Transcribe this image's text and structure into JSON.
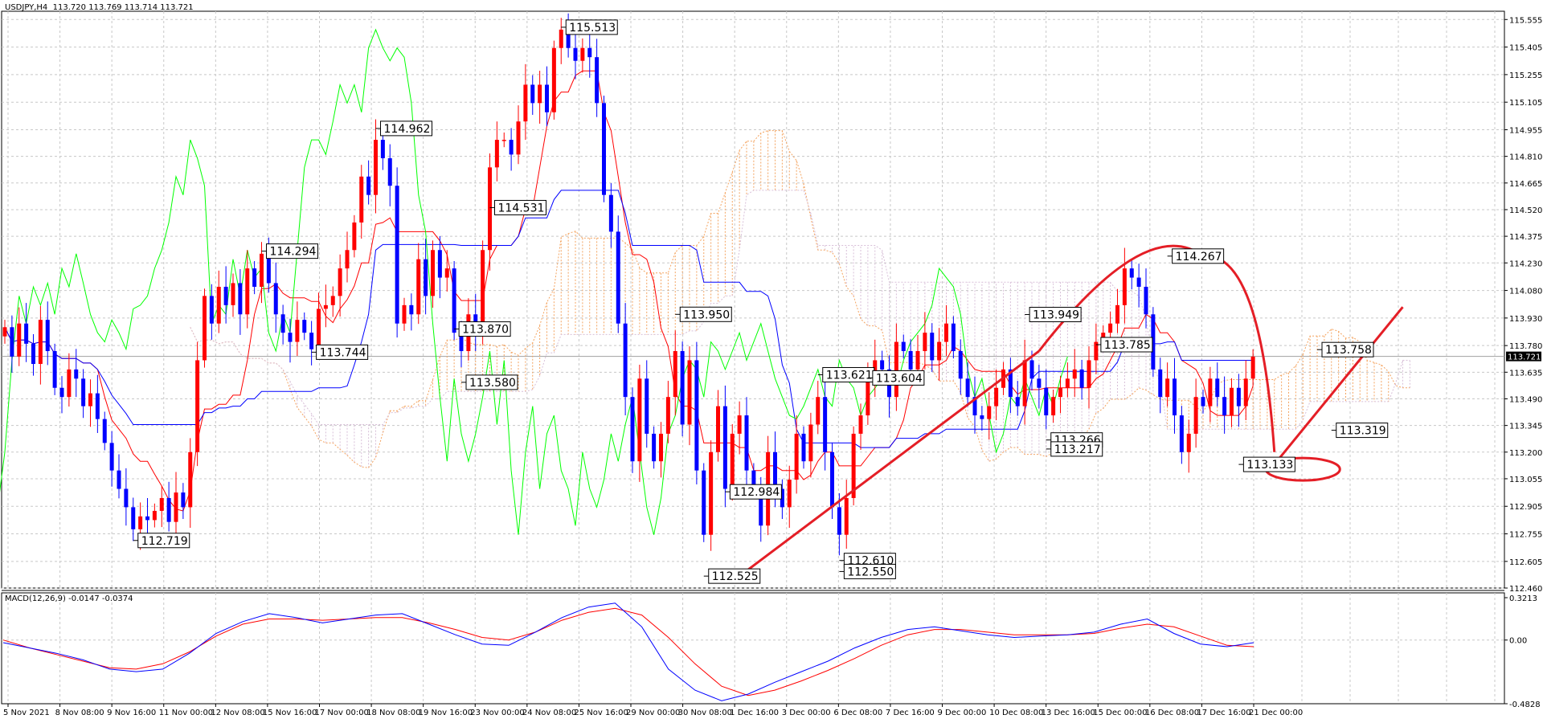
{
  "header": {
    "symbol": "USDJPY,H4",
    "ohlc": "113.720 113.769 113.714 113.721"
  },
  "macd_header": {
    "label": "MACD(12,26,9)",
    "values": "-0.0147 -0.0374"
  },
  "colors": {
    "bull": "#ff0000",
    "bear": "#0000ff",
    "tenkan": "#ff0000",
    "kijun": "#0000ff",
    "chikou": "#00ff00",
    "cloud_up": "#f4a460",
    "cloud_down": "#d8bfd8",
    "macd": "#0000ff",
    "signal": "#ff0000",
    "annotation": "#e41e26",
    "grid": "#c8c8c8"
  },
  "chart_data": [
    {
      "type": "candlestick",
      "symbol": "USDJPY",
      "timeframe": "H4",
      "ylim": [
        112.46,
        115.6
      ],
      "y_ticks": [
        "115.555",
        "115.405",
        "115.255",
        "115.105",
        "114.955",
        "114.810",
        "114.665",
        "114.520",
        "114.375",
        "114.230",
        "114.080",
        "113.930",
        "113.780",
        "113.635",
        "113.490",
        "113.345",
        "113.200",
        "113.055",
        "112.905",
        "112.755",
        "112.605",
        "112.460"
      ],
      "current_price": "113.721",
      "x_tick_labels": [
        "5 Nov 2021",
        "8 Nov 08:00",
        "9 Nov 16:00",
        "11 Nov 00:00",
        "12 Nov 08:00",
        "15 Nov 16:00",
        "17 Nov 00:00",
        "18 Nov 08:00",
        "19 Nov 16:00",
        "23 Nov 00:00",
        "24 Nov 08:00",
        "25 Nov 16:00",
        "29 Nov 00:00",
        "30 Nov 08:00",
        "1 Dec 16:00",
        "3 Dec 00:00",
        "6 Dec 08:00",
        "7 Dec 16:00",
        "9 Dec 00:00",
        "10 Dec 08:00",
        "13 Dec 16:00",
        "15 Dec 00:00",
        "16 Dec 08:00",
        "17 Dec 16:00",
        "21 Dec 00:00"
      ],
      "closes": [
        113.88,
        113.72,
        113.9,
        113.79,
        113.68,
        113.92,
        113.75,
        113.55,
        113.5,
        113.65,
        113.6,
        113.45,
        113.52,
        113.38,
        113.25,
        113.1,
        113.0,
        112.9,
        112.78,
        112.85,
        112.83,
        112.88,
        112.95,
        112.82,
        112.98,
        112.9,
        113.2,
        113.7,
        114.05,
        113.9,
        114.1,
        114.0,
        114.12,
        113.95,
        114.2,
        114.1,
        114.28,
        114.12,
        113.95,
        113.85,
        113.8,
        113.92,
        113.85,
        113.76,
        113.98,
        114.0,
        114.05,
        114.2,
        114.3,
        114.45,
        114.7,
        114.6,
        114.9,
        114.8,
        114.65,
        113.9,
        114.0,
        113.95,
        114.25,
        114.05,
        114.3,
        114.15,
        114.2,
        113.85,
        113.75,
        113.95,
        113.85,
        114.3,
        114.75,
        114.9,
        114.9,
        114.82,
        115.0,
        115.2,
        115.1,
        115.2,
        115.05,
        115.4,
        115.5,
        115.4,
        115.33,
        115.4,
        115.35,
        115.1,
        114.6,
        114.4,
        113.9,
        113.5,
        113.15,
        113.6,
        113.3,
        113.15,
        113.3,
        113.5,
        113.75,
        113.35,
        113.7,
        113.1,
        112.75,
        113.2,
        113.45,
        113.0,
        113.3,
        113.4,
        113.1,
        113.0,
        112.8,
        113.2,
        113.0,
        112.9,
        113.05,
        113.3,
        113.15,
        113.35,
        113.5,
        113.2,
        112.9,
        112.75,
        112.95,
        113.3,
        113.4,
        113.6,
        113.7,
        113.65,
        113.5,
        113.8,
        113.75,
        113.65,
        113.75,
        113.85,
        113.7,
        113.8,
        113.9,
        113.75,
        113.6,
        113.5,
        113.4,
        113.38,
        113.45,
        113.55,
        113.65,
        113.5,
        113.45,
        113.7,
        113.6,
        113.55,
        113.4,
        113.5,
        113.55,
        113.6,
        113.65,
        113.55,
        113.7,
        113.8,
        113.85,
        113.9,
        114.0,
        114.2,
        114.15,
        114.1,
        113.95,
        113.65,
        113.5,
        113.6,
        113.4,
        113.2,
        113.3,
        113.5,
        113.45,
        113.6,
        113.5,
        113.4,
        113.55,
        113.45,
        113.6,
        113.72
      ],
      "labels": [
        "115.513",
        "114.962",
        "114.531",
        "114.294",
        "113.870",
        "113.744",
        "113.580",
        "113.950",
        "113.949",
        "113.785",
        "113.621",
        "113.604",
        "113.266",
        "113.217",
        "112.984",
        "112.719",
        "112.610",
        "112.550",
        "112.525",
        "114.267",
        "113.758",
        "113.319",
        "113.133"
      ]
    },
    {
      "type": "line",
      "name": "MACD(12,26,9)",
      "ylim": [
        -0.4828,
        0.3213
      ],
      "y_ticks": [
        "0.3213",
        "0.00",
        "-0.4828"
      ],
      "macd": [
        -0.02,
        -0.06,
        -0.1,
        -0.15,
        -0.22,
        -0.24,
        -0.22,
        -0.1,
        0.05,
        0.14,
        0.2,
        0.17,
        0.13,
        0.16,
        0.19,
        0.2,
        0.12,
        0.04,
        -0.03,
        -0.04,
        0.06,
        0.17,
        0.25,
        0.28,
        0.1,
        -0.22,
        -0.38,
        -0.46,
        -0.41,
        -0.32,
        -0.24,
        -0.16,
        -0.06,
        0.02,
        0.08,
        0.1,
        0.07,
        0.04,
        0.02,
        0.03,
        0.04,
        0.06,
        0.12,
        0.16,
        0.05,
        -0.03,
        -0.05,
        -0.02
      ],
      "signal": [
        -0.0,
        -0.06,
        -0.11,
        -0.16,
        -0.21,
        -0.22,
        -0.18,
        -0.09,
        0.03,
        0.12,
        0.16,
        0.16,
        0.15,
        0.16,
        0.17,
        0.17,
        0.13,
        0.08,
        0.02,
        0.0,
        0.06,
        0.15,
        0.21,
        0.24,
        0.19,
        0.02,
        -0.18,
        -0.35,
        -0.42,
        -0.38,
        -0.31,
        -0.23,
        -0.14,
        -0.04,
        0.04,
        0.08,
        0.08,
        0.06,
        0.04,
        0.04,
        0.04,
        0.05,
        0.09,
        0.12,
        0.1,
        0.03,
        -0.04,
        -0.05
      ]
    }
  ]
}
